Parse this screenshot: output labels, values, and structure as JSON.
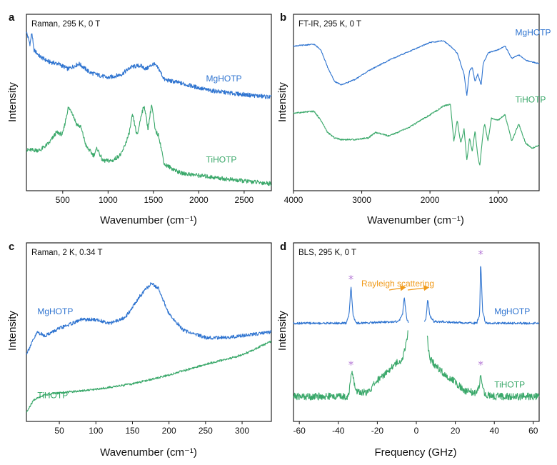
{
  "colors": {
    "mg": "#2f74d0",
    "ti": "#3aa86a",
    "star": "#b57ad6",
    "annot": "#f09a1a",
    "axis": "#111111"
  },
  "chart_data": [
    {
      "id": "a",
      "type": "line",
      "panel_letter": "a",
      "condition": "Raman, 295 K, 0 T",
      "xlabel": "Wavenumber (cm⁻¹)",
      "ylabel": "Intensity",
      "xlim": [
        100,
        2800
      ],
      "ylim": [
        0,
        1
      ],
      "xticks": [
        500,
        1000,
        1500,
        2000,
        2500
      ],
      "reversed": false,
      "series": [
        {
          "name": "MgHOTP",
          "label_pos": [
            2080,
            0.62
          ],
          "noise": 0.012,
          "x": [
            100,
            140,
            160,
            180,
            250,
            350,
            450,
            560,
            680,
            800,
            1000,
            1150,
            1250,
            1350,
            1420,
            1500,
            1560,
            1620,
            1800,
            2100,
            2400,
            2800
          ],
          "y": [
            0.9,
            0.83,
            0.9,
            0.8,
            0.76,
            0.73,
            0.72,
            0.69,
            0.72,
            0.67,
            0.64,
            0.66,
            0.7,
            0.71,
            0.69,
            0.72,
            0.69,
            0.63,
            0.61,
            0.57,
            0.55,
            0.53
          ]
        },
        {
          "name": "TiHOTP",
          "label_pos": [
            2080,
            0.16
          ],
          "noise": 0.012,
          "x": [
            100,
            250,
            350,
            430,
            500,
            560,
            600,
            650,
            700,
            760,
            840,
            880,
            940,
            1050,
            1150,
            1230,
            1270,
            1320,
            1370,
            1400,
            1440,
            1480,
            1520,
            1560,
            1620,
            1800,
            2100,
            2400,
            2800
          ],
          "y": [
            0.23,
            0.23,
            0.27,
            0.33,
            0.32,
            0.47,
            0.45,
            0.38,
            0.36,
            0.25,
            0.2,
            0.24,
            0.17,
            0.17,
            0.21,
            0.32,
            0.43,
            0.31,
            0.44,
            0.48,
            0.35,
            0.49,
            0.34,
            0.31,
            0.15,
            0.1,
            0.08,
            0.06,
            0.04
          ]
        }
      ]
    },
    {
      "id": "b",
      "type": "line",
      "panel_letter": "b",
      "condition": "FT-IR, 295 K, 0 T",
      "xlabel": "Wavenumber (cm⁻¹)",
      "ylabel": "Intensity",
      "xlim": [
        4000,
        400
      ],
      "ylim": [
        0,
        1
      ],
      "xticks": [
        4000,
        3000,
        2000,
        1000
      ],
      "reversed": true,
      "series": [
        {
          "name": "MgHOTP",
          "label_pos": [
            750,
            0.88
          ],
          "noise": 0.003,
          "x": [
            4000,
            3700,
            3600,
            3500,
            3400,
            3300,
            3100,
            2900,
            2600,
            2300,
            2000,
            1800,
            1700,
            1600,
            1500,
            1460,
            1420,
            1380,
            1340,
            1300,
            1250,
            1220,
            1150,
            1000,
            900,
            800,
            700,
            600,
            500,
            400
          ],
          "y": [
            0.82,
            0.83,
            0.8,
            0.7,
            0.62,
            0.6,
            0.63,
            0.68,
            0.74,
            0.79,
            0.84,
            0.85,
            0.82,
            0.78,
            0.66,
            0.54,
            0.68,
            0.7,
            0.62,
            0.66,
            0.6,
            0.72,
            0.78,
            0.8,
            0.82,
            0.75,
            0.77,
            0.74,
            0.73,
            0.72
          ]
        },
        {
          "name": "TiHOTP",
          "label_pos": [
            750,
            0.5
          ],
          "noise": 0.004,
          "x": [
            4000,
            3700,
            3600,
            3500,
            3400,
            3300,
            3100,
            2900,
            2800,
            2600,
            2300,
            2000,
            1800,
            1700,
            1650,
            1600,
            1550,
            1500,
            1460,
            1420,
            1380,
            1340,
            1300,
            1270,
            1230,
            1200,
            1150,
            1100,
            1000,
            900,
            800,
            700,
            600,
            500,
            400
          ],
          "y": [
            0.44,
            0.45,
            0.4,
            0.33,
            0.3,
            0.29,
            0.29,
            0.3,
            0.33,
            0.31,
            0.36,
            0.43,
            0.48,
            0.49,
            0.28,
            0.4,
            0.27,
            0.35,
            0.17,
            0.3,
            0.22,
            0.34,
            0.2,
            0.14,
            0.3,
            0.38,
            0.28,
            0.41,
            0.4,
            0.43,
            0.28,
            0.38,
            0.27,
            0.24,
            0.26
          ]
        }
      ]
    },
    {
      "id": "c",
      "type": "line",
      "panel_letter": "c",
      "condition": "Raman, 2 K, 0.34 T",
      "xlabel": "Wavenumber (cm⁻¹)",
      "ylabel": "Intensity",
      "xlim": [
        5,
        340
      ],
      "ylim": [
        0,
        1
      ],
      "xticks": [
        50,
        100,
        150,
        200,
        250,
        300
      ],
      "reversed": false,
      "series": [
        {
          "name": "MgHOTP",
          "label_pos": [
            20,
            0.6
          ],
          "noise": 0.01,
          "x": [
            5,
            20,
            30,
            50,
            80,
            100,
            120,
            140,
            160,
            175,
            185,
            200,
            220,
            250,
            280,
            300,
            320,
            340
          ],
          "y": [
            0.38,
            0.5,
            0.48,
            0.52,
            0.57,
            0.57,
            0.55,
            0.58,
            0.7,
            0.77,
            0.75,
            0.6,
            0.51,
            0.47,
            0.47,
            0.48,
            0.49,
            0.5
          ]
        },
        {
          "name": "TiHOTP",
          "label_pos": [
            20,
            0.13
          ],
          "noise": 0.006,
          "x": [
            5,
            15,
            30,
            50,
            100,
            150,
            200,
            250,
            290,
            310,
            330,
            340
          ],
          "y": [
            0.05,
            0.12,
            0.15,
            0.16,
            0.18,
            0.21,
            0.26,
            0.32,
            0.36,
            0.39,
            0.43,
            0.45
          ]
        }
      ]
    },
    {
      "id": "d",
      "type": "line",
      "panel_letter": "d",
      "condition": "BLS, 295 K, 0 T",
      "xlabel": "Frequency (GHz)",
      "ylabel": "Intensity",
      "xlim": [
        -63,
        63
      ],
      "ylim": [
        0,
        1
      ],
      "xticks": [
        -60,
        -40,
        -20,
        0,
        20,
        40,
        60
      ],
      "reversed": false,
      "series": [
        {
          "name": "MgHOTP",
          "label_pos": [
            40,
            0.6
          ],
          "noise": 0.006,
          "gap": [
            -4,
            4
          ],
          "x": [
            -63,
            -36,
            -34.5,
            -33.5,
            -32.5,
            -31,
            -9,
            -7,
            -6.2,
            -5.8,
            -5,
            -4,
            4,
            5,
            5.8,
            6.2,
            7,
            9,
            31,
            32.5,
            33,
            34,
            35.5,
            63
          ],
          "y": [
            0.55,
            0.55,
            0.6,
            0.76,
            0.6,
            0.55,
            0.56,
            0.6,
            0.7,
            0.66,
            0.58,
            0.55,
            0.55,
            0.58,
            0.68,
            0.66,
            0.59,
            0.56,
            0.55,
            0.6,
            0.9,
            0.62,
            0.55,
            0.55
          ]
        },
        {
          "name": "TiHOTP",
          "label_pos": [
            40,
            0.19
          ],
          "noise": 0.02,
          "gap": [
            -4.3,
            5.5
          ],
          "x": [
            -63,
            -40,
            -35,
            -34,
            -33,
            -31,
            -25,
            -20,
            -15,
            -10,
            -7,
            -5.5,
            -4.3,
            5.5,
            6,
            7,
            10,
            15,
            20,
            25,
            31,
            32.5,
            33,
            34,
            35.5,
            40,
            63
          ],
          "y": [
            0.14,
            0.14,
            0.14,
            0.2,
            0.28,
            0.17,
            0.16,
            0.23,
            0.28,
            0.33,
            0.35,
            0.42,
            0.5,
            0.5,
            0.42,
            0.35,
            0.31,
            0.26,
            0.22,
            0.17,
            0.16,
            0.2,
            0.27,
            0.19,
            0.15,
            0.14,
            0.14
          ]
        }
      ],
      "annotations": {
        "rayleigh_label": "Rayleigh scattering",
        "rayleigh_arrow_targets": [
          -6,
          6
        ],
        "star_symbol": "*",
        "stars": [
          [
            -33.5,
            0.8
          ],
          [
            33,
            0.94
          ],
          [
            -33.5,
            0.32
          ],
          [
            33,
            0.32
          ]
        ]
      }
    }
  ]
}
